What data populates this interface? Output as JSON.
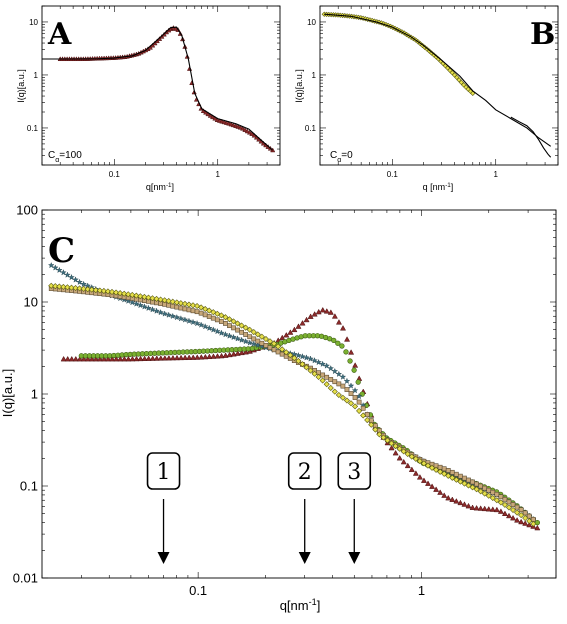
{
  "chart_data": [
    {
      "panel": "A",
      "type": "scatter",
      "xscale": "log",
      "yscale": "log",
      "xlim": [
        0.02,
        4
      ],
      "ylim": [
        0.02,
        20
      ],
      "xlabel": "q[nm-1]",
      "ylabel": "I(q)[a.u.]",
      "xticks": [
        "0.1",
        "1"
      ],
      "yticks": [
        "0.1",
        "1",
        "10"
      ],
      "annotation": "Cα=100",
      "series": [
        {
          "marker": "triangle",
          "color": "#8B2A2A",
          "x": [
            0.03,
            0.04,
            0.05,
            0.07,
            0.1,
            0.13,
            0.17,
            0.22,
            0.28,
            0.33,
            0.37,
            0.42,
            0.47,
            0.52,
            0.57,
            0.62,
            0.7,
            0.85,
            1.0,
            1.3,
            1.7,
            2.2,
            2.8,
            3.4
          ],
          "y": [
            2.0,
            2.0,
            2.0,
            2.05,
            2.1,
            2.2,
            2.5,
            3.2,
            5.0,
            6.8,
            7.8,
            7.0,
            4.2,
            1.8,
            0.6,
            0.35,
            0.22,
            0.17,
            0.14,
            0.12,
            0.1,
            0.075,
            0.05,
            0.038
          ]
        },
        {
          "marker": "line",
          "color": "#000000",
          "x": [
            0.02,
            0.04,
            0.07,
            0.1,
            0.15,
            0.2,
            0.28,
            0.35,
            0.4,
            0.45,
            0.52,
            0.6,
            0.7,
            1.0,
            1.5,
            2.0,
            2.6,
            3.4
          ],
          "y": [
            2.0,
            2.0,
            2.02,
            2.08,
            2.3,
            2.9,
            5.2,
            7.8,
            8.0,
            5.5,
            2.0,
            0.45,
            0.23,
            0.15,
            0.12,
            0.095,
            0.06,
            0.038
          ]
        }
      ]
    },
    {
      "panel": "B",
      "type": "scatter",
      "xscale": "log",
      "yscale": "log",
      "xlim": [
        0.02,
        4
      ],
      "ylim": [
        0.02,
        20
      ],
      "xlabel": "q [nm-1]",
      "ylabel": "I(q)[a.u.]",
      "xticks": [
        "0.1",
        "1"
      ],
      "yticks": [
        "0.1",
        "1",
        "10"
      ],
      "annotation": "Cα=0",
      "series": [
        {
          "marker": "diamond",
          "color": "#E6E04A",
          "x": [
            0.022,
            0.03,
            0.04,
            0.05,
            0.06,
            0.08,
            0.1,
            0.13,
            0.17,
            0.22,
            0.28,
            0.35,
            0.42,
            0.5,
            0.6
          ],
          "y": [
            14,
            13.5,
            12.8,
            12,
            11,
            9.5,
            8.0,
            6.2,
            4.5,
            3.0,
            2.0,
            1.3,
            0.9,
            0.62,
            0.45
          ]
        },
        {
          "marker": "line",
          "color": "#000000",
          "x": [
            0.022,
            0.04,
            0.07,
            0.1,
            0.15,
            0.2,
            0.3,
            0.45,
            0.6,
            0.8,
            1.0,
            1.4,
            2.0,
            2.6,
            3.4
          ],
          "y": [
            14,
            12.8,
            10,
            8.0,
            5.3,
            3.6,
            1.9,
            0.95,
            0.5,
            0.33,
            0.22,
            0.15,
            0.1,
            0.065,
            0.045
          ]
        },
        {
          "marker": "line",
          "color": "#000000",
          "x": [
            1.4,
            1.7,
            2.0,
            2.3,
            2.6,
            2.9,
            3.2,
            3.4
          ],
          "y": [
            0.16,
            0.13,
            0.11,
            0.085,
            0.06,
            0.042,
            0.032,
            0.028
          ]
        }
      ]
    },
    {
      "panel": "C",
      "type": "scatter",
      "xscale": "log",
      "yscale": "log",
      "xlim": [
        0.02,
        4
      ],
      "ylim": [
        0.01,
        100
      ],
      "xlabel": "q[nm-1]",
      "ylabel": "I(q)[a.u.]",
      "xticks": [
        "0.1",
        "1"
      ],
      "yticks": [
        "0.01",
        "0.1",
        "1",
        "10",
        "100"
      ],
      "series": [
        {
          "marker": "triangle",
          "color": "#8B2A2A",
          "x": [
            0.025,
            0.03,
            0.04,
            0.05,
            0.07,
            0.1,
            0.13,
            0.17,
            0.22,
            0.27,
            0.32,
            0.36,
            0.4,
            0.45,
            0.5,
            0.56,
            0.62,
            0.7,
            0.8,
            1.0,
            1.3,
            1.7,
            2.2,
            2.7,
            3.3
          ],
          "y": [
            2.4,
            2.4,
            2.4,
            2.4,
            2.45,
            2.5,
            2.6,
            2.9,
            3.6,
            5.0,
            7.0,
            8.2,
            7.6,
            5.0,
            2.2,
            0.9,
            0.45,
            0.3,
            0.2,
            0.12,
            0.075,
            0.058,
            0.055,
            0.042,
            0.035
          ]
        },
        {
          "marker": "circle",
          "color": "#7AB030",
          "x": [
            0.03,
            0.04,
            0.05,
            0.07,
            0.1,
            0.13,
            0.17,
            0.22,
            0.27,
            0.3,
            0.35,
            0.4,
            0.45,
            0.5,
            0.56,
            0.62,
            0.7,
            0.85,
            1.0,
            1.3,
            1.7,
            2.2,
            2.7,
            3.3
          ],
          "y": [
            2.6,
            2.6,
            2.7,
            2.8,
            2.9,
            3.0,
            3.1,
            3.4,
            4.0,
            4.3,
            4.3,
            3.9,
            3.2,
            1.8,
            0.8,
            0.45,
            0.33,
            0.25,
            0.18,
            0.14,
            0.11,
            0.085,
            0.06,
            0.04
          ]
        },
        {
          "marker": "star",
          "color": "#3E6E7E",
          "x": [
            0.022,
            0.03,
            0.04,
            0.05,
            0.07,
            0.1,
            0.13,
            0.17,
            0.22,
            0.27,
            0.32,
            0.38,
            0.45,
            0.52,
            0.58,
            0.65,
            0.75,
            0.9,
            1.1,
            1.4,
            1.8,
            2.3,
            2.8,
            3.3
          ],
          "y": [
            25,
            16,
            12,
            10,
            7.5,
            5.8,
            4.5,
            3.6,
            3.0,
            2.7,
            2.4,
            2.0,
            1.5,
            1.0,
            0.55,
            0.38,
            0.28,
            0.22,
            0.17,
            0.13,
            0.1,
            0.075,
            0.055,
            0.04
          ]
        },
        {
          "marker": "square",
          "color": "#C8A87A",
          "x": [
            0.022,
            0.03,
            0.04,
            0.05,
            0.07,
            0.1,
            0.13,
            0.17,
            0.22,
            0.27,
            0.32,
            0.38,
            0.45,
            0.52,
            0.6,
            0.7,
            0.85,
            1.0,
            1.3,
            1.7,
            2.2,
            2.8,
            3.3
          ],
          "y": [
            14,
            13,
            12,
            11,
            9.5,
            7.8,
            6.0,
            4.2,
            3.0,
            2.3,
            1.9,
            1.5,
            1.2,
            0.85,
            0.5,
            0.32,
            0.24,
            0.19,
            0.15,
            0.11,
            0.08,
            0.055,
            0.04
          ]
        },
        {
          "marker": "diamond",
          "color": "#E6E04A",
          "x": [
            0.022,
            0.03,
            0.04,
            0.05,
            0.07,
            0.1,
            0.13,
            0.17,
            0.22,
            0.28,
            0.35,
            0.42,
            0.5,
            0.58,
            0.65,
            0.75,
            0.9,
            1.1,
            1.4,
            1.8,
            2.3,
            2.8,
            3.3
          ],
          "y": [
            15,
            14,
            13,
            12,
            10.5,
            9.0,
            7.0,
            5.0,
            3.5,
            2.3,
            1.5,
            1.0,
            0.75,
            0.5,
            0.36,
            0.28,
            0.21,
            0.16,
            0.12,
            0.09,
            0.065,
            0.048,
            0.036
          ]
        }
      ],
      "arrows": [
        {
          "label": "1",
          "x": 0.07
        },
        {
          "label": "2",
          "x": 0.3
        },
        {
          "label": "3",
          "x": 0.5
        }
      ]
    }
  ]
}
